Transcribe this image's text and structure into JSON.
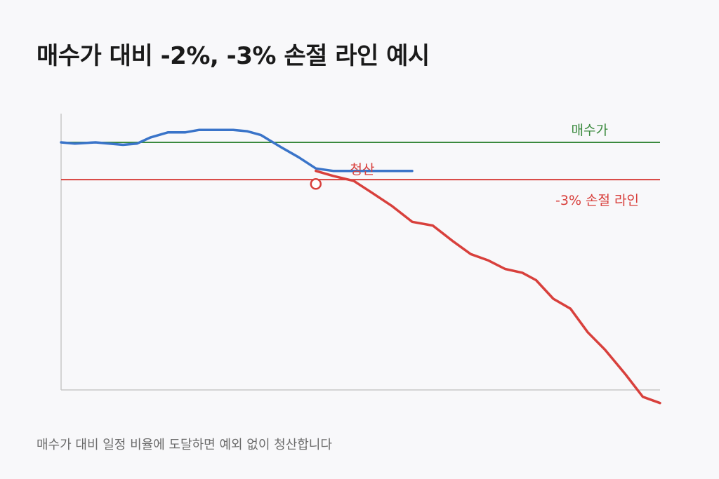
{
  "title": "매수가 대비 -2%, -3% 손절 라인 예시",
  "caption": "매수가 대비 일정 비율에 도달하면 예외 없이 청산합니다",
  "chart_data": {
    "type": "line",
    "grid": false,
    "series": [
      {
        "color": "#3a74c9",
        "x": [
          0,
          2,
          5,
          7,
          9,
          11,
          13,
          15.5,
          18,
          20,
          22,
          25,
          27,
          29,
          32,
          34.5,
          37,
          39.5,
          42.5,
          45,
          48,
          51
        ],
        "y": [
          100.0,
          99.9,
          100.0,
          99.9,
          99.8,
          99.9,
          100.4,
          100.8,
          100.8,
          101.0,
          101.0,
          101.0,
          100.9,
          100.6,
          99.6,
          98.8,
          97.9,
          97.7,
          97.7,
          97.7,
          97.7,
          97.7
        ]
      },
      {
        "color": "#d8403c",
        "x": [
          37,
          39.5,
          42.5,
          45,
          48,
          51,
          54,
          57,
          59.5,
          62,
          64.5,
          67,
          69,
          71.5,
          74,
          76.5,
          79,
          82,
          84.5,
          87
        ],
        "y": [
          97.7,
          97.3,
          96.9,
          96.0,
          94.9,
          93.6,
          93.3,
          92.0,
          91.0,
          90.5,
          89.8,
          89.5,
          88.9,
          87.4,
          86.6,
          84.7,
          83.3,
          81.3,
          79.5,
          79.0
        ]
      }
    ],
    "reference_lines": [
      {
        "label": "매수가",
        "y": 100,
        "color": "#3b8a3e"
      },
      {
        "label": "-3% 손절 라인",
        "y": 97,
        "color": "#d8403c"
      }
    ],
    "annotations": [
      {
        "label": "청산",
        "x": 37,
        "y": 96.65,
        "color": "#d8403c"
      }
    ]
  }
}
